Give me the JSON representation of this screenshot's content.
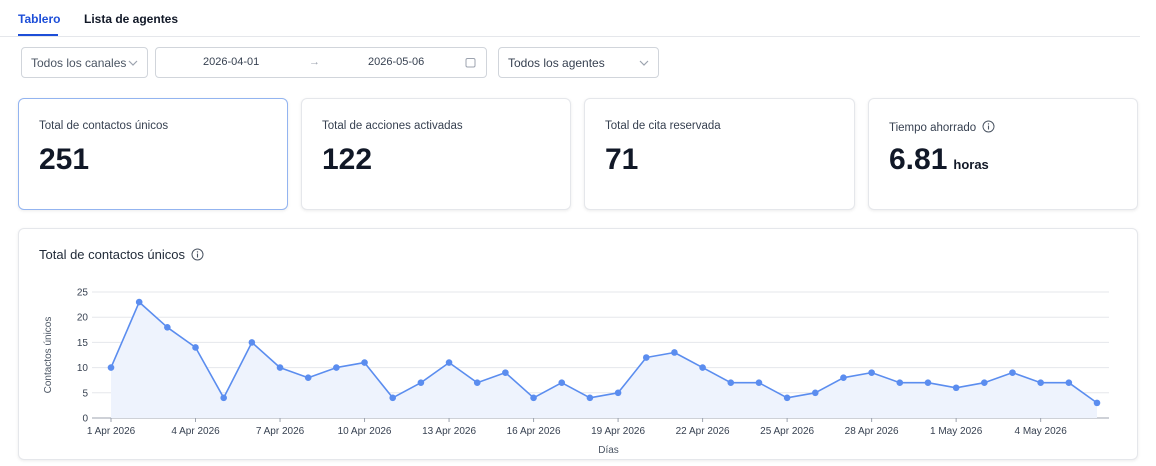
{
  "tabs": [
    {
      "label": "Tablero",
      "active": true
    },
    {
      "label": "Lista de agentes",
      "active": false
    }
  ],
  "filters": {
    "channels": "Todos los canales",
    "date_start": "2026-04-01",
    "date_end": "2026-05-06",
    "agents": "Todos los agentes",
    "arrow": "→"
  },
  "cards": [
    {
      "label": "Total de contactos únicos",
      "value": "251"
    },
    {
      "label": "Total de acciones activadas",
      "value": "122"
    },
    {
      "label": "Total de cita reservada",
      "value": "71"
    },
    {
      "label": "Tiempo ahorrado",
      "value": "6.81",
      "unit": "horas"
    }
  ],
  "chart_panel": {
    "title": "Total de contactos únicos"
  },
  "colors": {
    "accent": "#1d4ed8",
    "line": "#5b8def",
    "area": "#eef3fd"
  },
  "chart_data": {
    "type": "area",
    "title": "Total de contactos únicos",
    "xlabel": "Días",
    "ylabel": "Contactos únicos",
    "ylim": [
      0,
      25
    ],
    "yticks": [
      0,
      5,
      10,
      15,
      20,
      25
    ],
    "x": [
      "2026-04-01",
      "2026-04-02",
      "2026-04-03",
      "2026-04-04",
      "2026-04-05",
      "2026-04-06",
      "2026-04-07",
      "2026-04-08",
      "2026-04-09",
      "2026-04-10",
      "2026-04-11",
      "2026-04-12",
      "2026-04-13",
      "2026-04-14",
      "2026-04-15",
      "2026-04-16",
      "2026-04-17",
      "2026-04-18",
      "2026-04-19",
      "2026-04-20",
      "2026-04-21",
      "2026-04-22",
      "2026-04-23",
      "2026-04-24",
      "2026-04-25",
      "2026-04-26",
      "2026-04-27",
      "2026-04-28",
      "2026-04-29",
      "2026-04-30",
      "2026-05-01",
      "2026-05-02",
      "2026-05-03",
      "2026-05-04",
      "2026-05-05",
      "2026-05-06"
    ],
    "values": [
      10,
      23,
      18,
      14,
      4,
      15,
      10,
      8,
      10,
      11,
      4,
      7,
      11,
      7,
      9,
      4,
      7,
      4,
      5,
      12,
      13,
      10,
      7,
      7,
      4,
      5,
      8,
      9,
      7,
      7,
      6,
      7,
      9,
      7,
      7,
      3
    ],
    "xtick_labels": [
      "1 Apr 2026",
      "4 Apr 2026",
      "7 Apr 2026",
      "10 Apr 2026",
      "13 Apr 2026",
      "16 Apr 2026",
      "19 Apr 2026",
      "22 Apr 2026",
      "25 Apr 2026",
      "28 Apr 2026",
      "1 May 2026",
      "4 May 2026"
    ],
    "xtick_index": [
      0,
      3,
      6,
      9,
      12,
      15,
      18,
      21,
      24,
      27,
      30,
      33
    ],
    "grid": true
  }
}
